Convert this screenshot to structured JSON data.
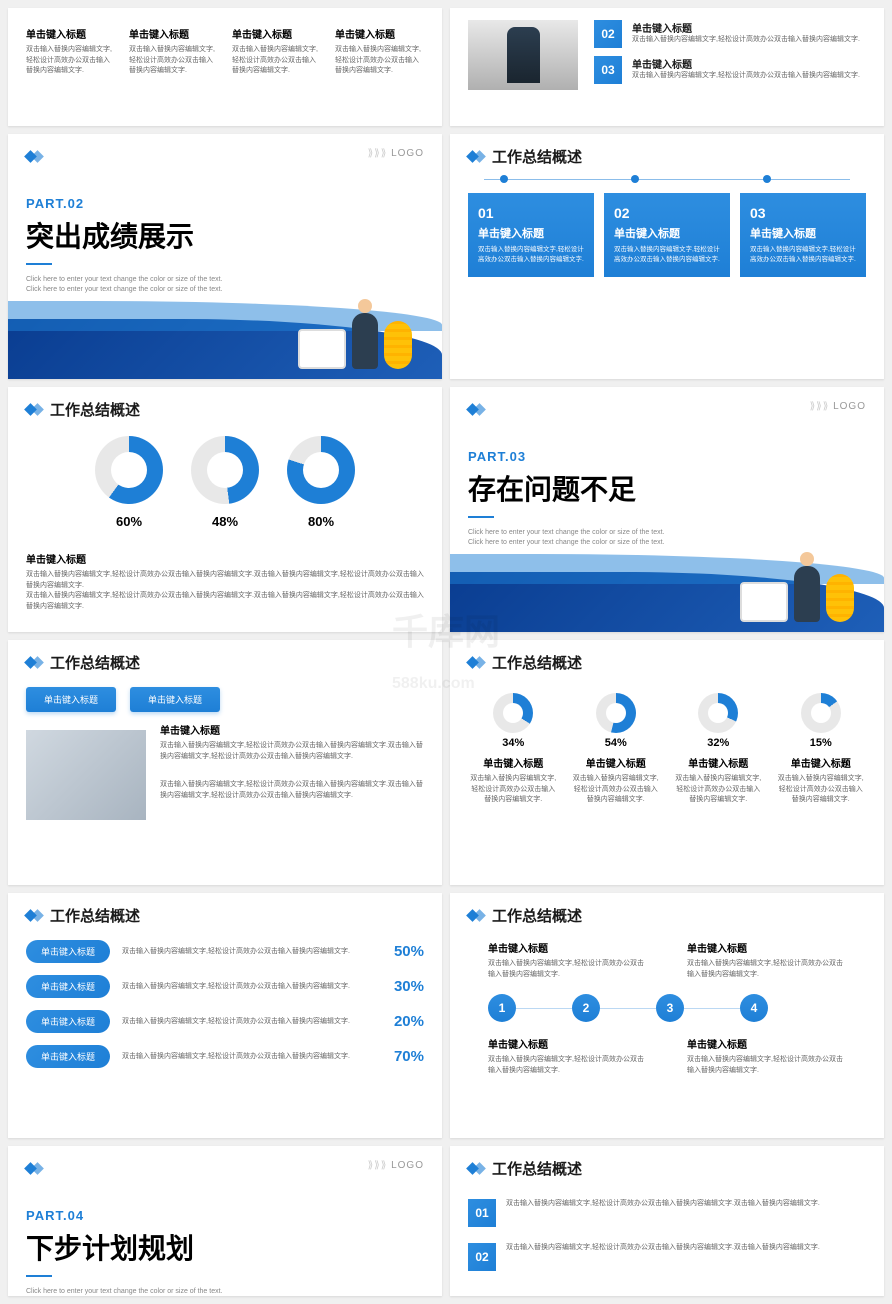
{
  "common": {
    "section_title": "工作总结概述",
    "click_title": "单击键入标题",
    "filler_short": "双击输入替换内容编辑文字,轻松设计高效办公双击输入替换内容编辑文字.",
    "filler_line": "双击输入替换内容编辑文字,轻松设计高效办公双击输入替换内容编辑文字.双击输入替换内容编辑文字,轻松设计高效办公双击输入替换内容编辑文字.",
    "sub_en": "Click here to enter your text change the color or size of the text. Click here to enter your text change the color or size of the text.",
    "logo": "LOGO",
    "watermark": "千库网",
    "watermark_sub": "588ku.com"
  },
  "slide1": {
    "cols": [
      {
        "t": "单击键入标题",
        "d": "双击输入替换内容编辑文字,轻松设计高效办公双击输入替换内容编辑文字."
      },
      {
        "t": "单击键入标题",
        "d": "双击输入替换内容编辑文字,轻松设计高效办公双击输入替换内容编辑文字."
      },
      {
        "t": "单击键入标题",
        "d": "双击输入替换内容编辑文字,轻松设计高效办公双击输入替换内容编辑文字."
      },
      {
        "t": "单击键入标题",
        "d": "双击输入替换内容编辑文字,轻松设计高效办公双击输入替换内容编辑文字."
      }
    ]
  },
  "slide2": {
    "items": [
      {
        "n": "02",
        "t": "单击键入标题",
        "d": "双击输入替换内容编辑文字,轻松设计高效办公双击输入替换内容编辑文字."
      },
      {
        "n": "03",
        "t": "单击键入标题",
        "d": "双击输入替换内容编辑文字,轻松设计高效办公双击输入替换内容编辑文字."
      }
    ]
  },
  "slide3": {
    "part": "PART.02",
    "title": "突出成绩展示"
  },
  "slide4": {
    "cards": [
      {
        "n": "01",
        "t": "单击键入标题",
        "d": "双击输入替换内容编辑文字,轻松设计高效办公双击输入替换内容编辑文字."
      },
      {
        "n": "02",
        "t": "单击键入标题",
        "d": "双击输入替换内容编辑文字,轻松设计高效办公双击输入替换内容编辑文字."
      },
      {
        "n": "03",
        "t": "单击键入标题",
        "d": "双击输入替换内容编辑文字,轻松设计高效办公双击输入替换内容编辑文字."
      }
    ]
  },
  "slide5": {
    "donuts": [
      {
        "pct": 60,
        "label": "60%",
        "color": "#1e7fd6"
      },
      {
        "pct": 48,
        "label": "48%",
        "color": "#1e7fd6"
      },
      {
        "pct": 80,
        "label": "80%",
        "color": "#1e7fd6"
      }
    ],
    "title": "单击键入标题"
  },
  "slide6": {
    "part": "PART.03",
    "title": "存在问题不足"
  },
  "slide7": {
    "btns": [
      "单击键入标题",
      "单击键入标题"
    ],
    "title": "单击键入标题"
  },
  "slide8": {
    "gauges": [
      {
        "pct": 34,
        "label": "34%"
      },
      {
        "pct": 54,
        "label": "54%"
      },
      {
        "pct": 32,
        "label": "32%"
      },
      {
        "pct": 15,
        "label": "15%"
      }
    ]
  },
  "slide9": {
    "bars": [
      {
        "t": "单击键入标题",
        "pct": "50%"
      },
      {
        "t": "单击键入标题",
        "pct": "30%"
      },
      {
        "t": "单击键入标题",
        "pct": "20%"
      },
      {
        "t": "单击键入标题",
        "pct": "70%"
      }
    ]
  },
  "slide10": {
    "top": [
      {
        "t": "单击键入标题"
      },
      {
        "t": "单击键入标题"
      }
    ],
    "steps": [
      "1",
      "2",
      "3",
      "4"
    ],
    "bottom": [
      {
        "t": "单击键入标题"
      },
      {
        "t": "单击键入标题"
      }
    ]
  },
  "slide11": {
    "part": "PART.04",
    "title": "下步计划规划"
  },
  "slide12": {
    "items": [
      {
        "n": "01",
        "d": "双击输入替换内容编辑文字,轻松设计高效办公双击输入替换内容编辑文字.双击输入替换内容编辑文字."
      },
      {
        "n": "02",
        "d": "双击输入替换内容编辑文字,轻松设计高效办公双击输入替换内容编辑文字.双击输入替换内容编辑文字."
      }
    ]
  }
}
